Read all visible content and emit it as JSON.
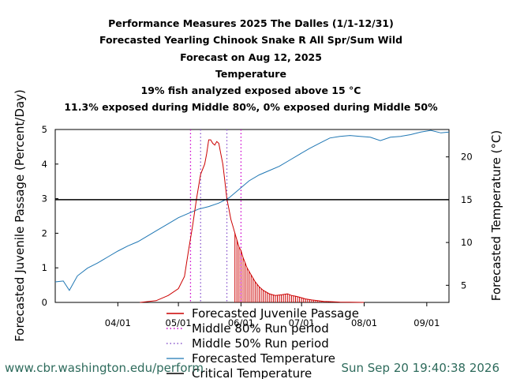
{
  "titles": [
    "Performance Measures 2025 The Dalles (1/1-12/31)",
    "Forecasted Yearling Chinook Snake R All Spr/Sum Wild",
    "Forecast on Aug 12, 2025",
    "Temperature",
    "19% fish analyzed exposed above 15 °C",
    "11.3% exposed during Middle 80%, 0% exposed during Middle 50%"
  ],
  "footer": {
    "left": "www.cbr.washington.edu/perform",
    "right": "Sun Sep 20 19:40:38 2026"
  },
  "colors": {
    "passage": "#cc0000",
    "temperature": "#1f77b4",
    "critical": "#000000",
    "middle80": "#cc00cc",
    "middle50": "#8855cc",
    "footer": "#2e6b5c"
  },
  "chart_data": {
    "type": "line",
    "xlabel": "",
    "ylabel": "Forecasted Juvenile Passage (Percent/Day)",
    "y2label": "Forecasted Temperature (°C)",
    "xlim": [
      "2025-03-01",
      "2025-09-12"
    ],
    "ylim": [
      0,
      5
    ],
    "y2lim": [
      3,
      23.2
    ],
    "x_ticks": [
      {
        "date": "2025-04-01",
        "label": "04/01"
      },
      {
        "date": "2025-05-01",
        "label": "05/01"
      },
      {
        "date": "2025-06-01",
        "label": "06/01"
      },
      {
        "date": "2025-07-01",
        "label": "07/01"
      },
      {
        "date": "2025-08-01",
        "label": "08/01"
      },
      {
        "date": "2025-09-01",
        "label": "09/01"
      }
    ],
    "y_ticks": [
      0,
      1,
      2,
      3,
      4,
      5
    ],
    "y2_ticks": [
      5,
      10,
      15,
      20
    ],
    "critical_temperature": 15,
    "middle80_period": [
      "2025-05-07",
      "2025-06-01"
    ],
    "middle50_period": [
      "2025-05-12",
      "2025-05-25"
    ],
    "legend_position": "bottom",
    "series": [
      {
        "name": "Forecasted Juvenile Passage",
        "axis": "left",
        "x": [
          "2025-04-12",
          "2025-04-20",
          "2025-04-26",
          "2025-05-01",
          "2025-05-04",
          "2025-05-06",
          "2025-05-08",
          "2025-05-10",
          "2025-05-12",
          "2025-05-14",
          "2025-05-15",
          "2025-05-16",
          "2025-05-17",
          "2025-05-18",
          "2025-05-19",
          "2025-05-20",
          "2025-05-21",
          "2025-05-22",
          "2025-05-23",
          "2025-05-24",
          "2025-05-25",
          "2025-05-26",
          "2025-05-27",
          "2025-05-28",
          "2025-05-29",
          "2025-05-30",
          "2025-05-31",
          "2025-06-01",
          "2025-06-02",
          "2025-06-04",
          "2025-06-06",
          "2025-06-08",
          "2025-06-10",
          "2025-06-12",
          "2025-06-15",
          "2025-06-18",
          "2025-06-21",
          "2025-06-24",
          "2025-06-26",
          "2025-06-28",
          "2025-06-30",
          "2025-07-03",
          "2025-07-06",
          "2025-07-09",
          "2025-07-12",
          "2025-07-16",
          "2025-07-20",
          "2025-07-25",
          "2025-08-01"
        ],
        "values": [
          0.0,
          0.05,
          0.2,
          0.4,
          0.75,
          1.5,
          2.2,
          3.0,
          3.7,
          4.0,
          4.3,
          4.7,
          4.7,
          4.6,
          4.55,
          4.65,
          4.6,
          4.3,
          4.0,
          3.5,
          3.0,
          2.7,
          2.4,
          2.2,
          2.0,
          1.8,
          1.6,
          1.5,
          1.3,
          1.0,
          0.8,
          0.6,
          0.45,
          0.35,
          0.25,
          0.2,
          0.22,
          0.25,
          0.2,
          0.18,
          0.15,
          0.1,
          0.07,
          0.05,
          0.03,
          0.02,
          0.01,
          0.005,
          0.0
        ]
      },
      {
        "name": "Middle 80% Run period",
        "axis": "left",
        "values": []
      },
      {
        "name": "Middle 50% Run period",
        "axis": "left",
        "values": []
      },
      {
        "name": "Forecasted Temperature",
        "axis": "right",
        "x": [
          "2025-03-01",
          "2025-03-05",
          "2025-03-08",
          "2025-03-12",
          "2025-03-17",
          "2025-03-22",
          "2025-03-27",
          "2025-04-01",
          "2025-04-06",
          "2025-04-11",
          "2025-04-16",
          "2025-04-21",
          "2025-04-26",
          "2025-05-01",
          "2025-05-06",
          "2025-05-11",
          "2025-05-16",
          "2025-05-21",
          "2025-05-26",
          "2025-05-31",
          "2025-06-05",
          "2025-06-10",
          "2025-06-15",
          "2025-06-20",
          "2025-06-25",
          "2025-06-30",
          "2025-07-05",
          "2025-07-10",
          "2025-07-15",
          "2025-07-20",
          "2025-07-25",
          "2025-07-30",
          "2025-08-04",
          "2025-08-09",
          "2025-08-14",
          "2025-08-19",
          "2025-08-24",
          "2025-08-29",
          "2025-09-03",
          "2025-09-08",
          "2025-09-12"
        ],
        "values": [
          5.4,
          5.5,
          4.4,
          6.1,
          7.0,
          7.6,
          8.3,
          9.0,
          9.6,
          10.1,
          10.8,
          11.5,
          12.2,
          12.9,
          13.4,
          13.9,
          14.2,
          14.6,
          15.2,
          16.2,
          17.2,
          17.9,
          18.4,
          18.9,
          19.6,
          20.3,
          21.0,
          21.6,
          22.2,
          22.4,
          22.5,
          22.4,
          22.3,
          21.9,
          22.3,
          22.4,
          22.6,
          22.9,
          23.1,
          22.8,
          22.9
        ]
      },
      {
        "name": "Critical Temperature",
        "axis": "right",
        "values": [
          15
        ]
      }
    ]
  }
}
